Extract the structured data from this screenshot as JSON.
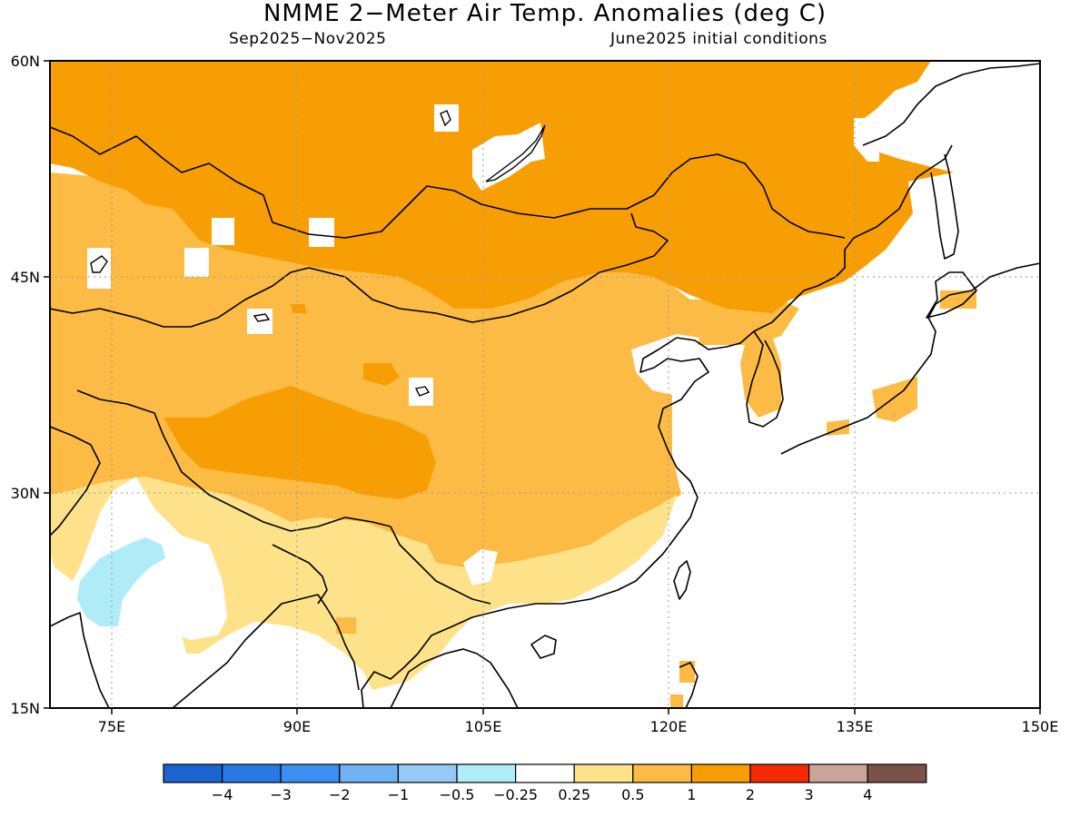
{
  "header": {
    "title": "NMME 2−Meter Air Temp. Anomalies (deg C)",
    "period": "Sep2025−Nov2025",
    "initial_conditions": "June2025 initial conditions"
  },
  "map": {
    "lat_labels": [
      "60N",
      "45N",
      "30N",
      "15N"
    ],
    "lon_labels": [
      "75E",
      "90E",
      "105E",
      "120E",
      "135E",
      "150E"
    ],
    "colors": {
      "band_025_05": "#fde28a",
      "band_05_1": "#fbbb45",
      "band_1_2": "#f89e05",
      "band_neg05_neg025": "#b0ebf8",
      "coast": "#000000",
      "grid": "#9a9a9a"
    }
  },
  "colorbar": {
    "colors": [
      "#1b63cf",
      "#2a78e4",
      "#3c8ff0",
      "#71b2f3",
      "#95c9f6",
      "#b0ebf8",
      "#ffffff",
      "#fde28a",
      "#fbbb45",
      "#f89e05",
      "#f52a04",
      "#c8a49a",
      "#7b5248"
    ],
    "tick_labels": [
      "−4",
      "−3",
      "−2",
      "−1",
      "−0.5",
      "−0.25",
      "0.25",
      "0.5",
      "1",
      "2",
      "3",
      "4"
    ]
  }
}
